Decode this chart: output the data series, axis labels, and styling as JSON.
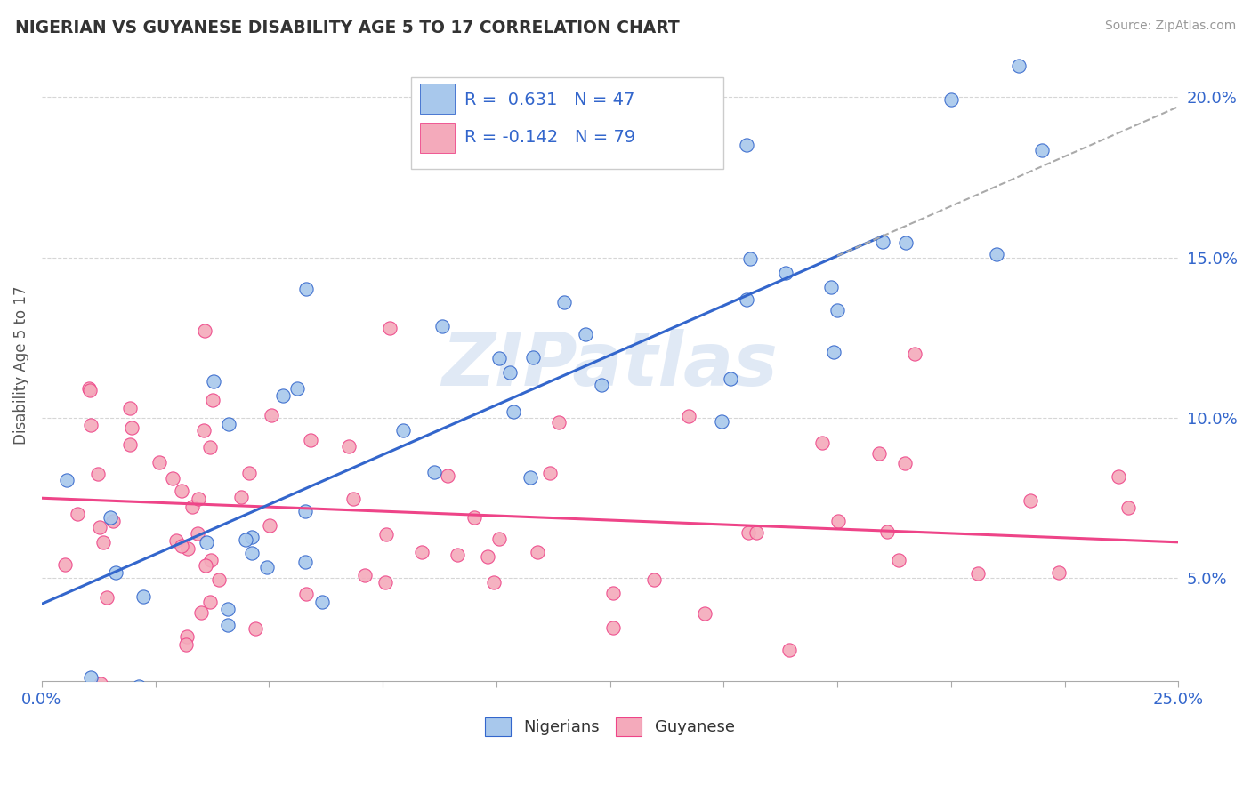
{
  "title": "NIGERIAN VS GUYANESE DISABILITY AGE 5 TO 17 CORRELATION CHART",
  "source": "Source: ZipAtlas.com",
  "ylabel": "Disability Age 5 to 17",
  "ytick_labels": [
    "5.0%",
    "10.0%",
    "15.0%",
    "20.0%"
  ],
  "ytick_values": [
    0.05,
    0.1,
    0.15,
    0.2
  ],
  "xlim": [
    0.0,
    0.25
  ],
  "ylim": [
    0.018,
    0.215
  ],
  "color_nigerian": "#A8C8EC",
  "color_guyanese": "#F4AABB",
  "color_line_nigerian": "#3366CC",
  "color_line_guyanese": "#EE4488",
  "color_line_extrapolated": "#AAAAAA",
  "watermark": "ZIPatlas",
  "nigerian_slope": 0.62,
  "nigerian_intercept": 0.042,
  "guyanese_slope": -0.055,
  "guyanese_intercept": 0.075,
  "legend_box_color": "#CCCCCC",
  "grid_color": "#CCCCCC",
  "bottom_legend_labels": [
    "Nigerians",
    "Guyanese"
  ]
}
